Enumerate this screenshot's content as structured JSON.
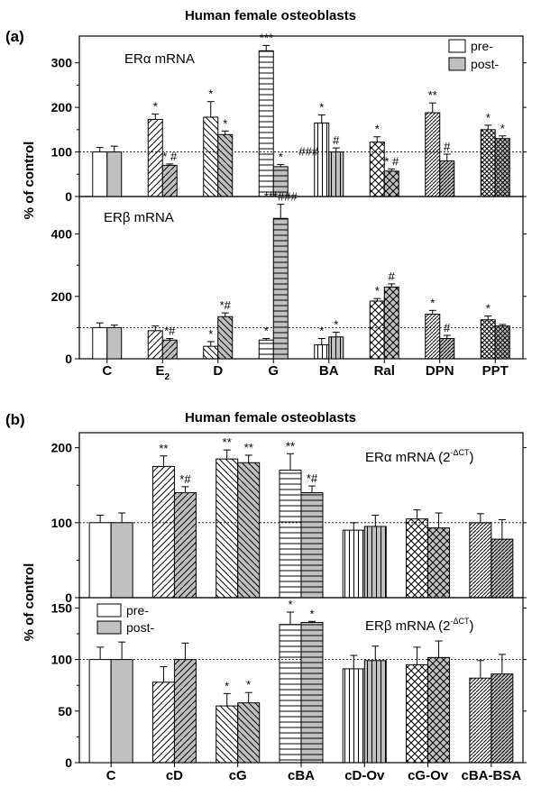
{
  "figure": {
    "panels": [
      {
        "letter": "(a)",
        "title": "Human female osteoblasts"
      },
      {
        "letter": "(b)",
        "title": "Human female osteoblasts"
      }
    ],
    "ylabel": "% of control",
    "legend": {
      "pre": "pre-",
      "post": "post-"
    }
  },
  "chart_data": [
    {
      "type": "bar",
      "panel": "(a)",
      "subplot": "upper",
      "label": "ERα mRNA",
      "categories": [
        "C",
        "E2",
        "D",
        "G",
        "BA",
        "Ral",
        "DPN",
        "PPT"
      ],
      "ylim": [
        0,
        360
      ],
      "yticks": [
        0,
        100,
        200,
        300
      ],
      "reference_line": 100,
      "series": [
        {
          "name": "pre-",
          "values": [
            100,
            173,
            178,
            327,
            165,
            122,
            188,
            150
          ],
          "errors": [
            10,
            12,
            35,
            12,
            18,
            12,
            22,
            10
          ],
          "annotations": [
            "",
            "*",
            "*",
            "***",
            "*",
            "*",
            "**",
            "*"
          ]
        },
        {
          "name": "post-",
          "values": [
            100,
            70,
            139,
            67,
            100,
            57,
            80,
            130
          ],
          "errors": [
            13,
            3,
            8,
            5,
            9,
            5,
            15,
            6
          ],
          "annotations": [
            "",
            "* #",
            "*",
            "*",
            "#",
            "* #",
            "#",
            "*"
          ]
        }
      ],
      "side_annotations": [
        {
          "category": "G",
          "text": "###"
        }
      ],
      "patterns": [
        "open",
        "diag-up",
        "diag-down",
        "horizontal",
        "vertical",
        "crosshatch",
        "diag-up-dense",
        "crosshatch-dense"
      ]
    },
    {
      "type": "bar",
      "panel": "(a)",
      "subplot": "lower",
      "label": "ERβ mRNA",
      "categories": [
        "C",
        "E2",
        "D",
        "G",
        "BA",
        "Ral",
        "DPN",
        "PPT"
      ],
      "ylim": [
        0,
        520
      ],
      "yticks": [
        0,
        200,
        400
      ],
      "reference_line": 100,
      "series": [
        {
          "name": "pre-",
          "values": [
            100,
            90,
            40,
            60,
            45,
            185,
            143,
            125
          ],
          "errors": [
            15,
            15,
            15,
            5,
            20,
            8,
            12,
            12
          ],
          "annotations": [
            "",
            "",
            "*",
            "*",
            "*",
            "*",
            "*",
            "*"
          ]
        },
        {
          "name": "post-",
          "values": [
            100,
            60,
            135,
            450,
            70,
            230,
            65,
            105
          ],
          "errors": [
            8,
            5,
            12,
            45,
            15,
            10,
            10,
            5
          ],
          "annotations": [
            "",
            "*#",
            "*#",
            "***###",
            "*",
            "#",
            "#",
            ""
          ]
        }
      ]
    },
    {
      "type": "bar",
      "panel": "(b)",
      "subplot": "upper",
      "label": "ERα mRNA (2",
      "label_sup": "-ΔCT",
      "label_end": ")",
      "categories": [
        "C",
        "cD",
        "cG",
        "cBA",
        "cD-Ov",
        "cG-Ov",
        "cBA-BSA"
      ],
      "ylim": [
        0,
        220
      ],
      "yticks": [
        0,
        100,
        200
      ],
      "reference_line": 100,
      "series": [
        {
          "name": "pre-",
          "values": [
            100,
            175,
            185,
            170,
            90,
            105,
            100
          ],
          "errors": [
            10,
            14,
            12,
            22,
            10,
            12,
            12
          ],
          "annotations": [
            "",
            "**",
            "**",
            "**",
            "",
            "",
            ""
          ]
        },
        {
          "name": "post-",
          "values": [
            100,
            140,
            180,
            140,
            95,
            93,
            78
          ],
          "errors": [
            13,
            8,
            10,
            9,
            15,
            20,
            26
          ],
          "annotations": [
            "",
            "*#",
            "**",
            "*#",
            "",
            "",
            ""
          ]
        }
      ]
    },
    {
      "type": "bar",
      "panel": "(b)",
      "subplot": "lower",
      "label": "ERβ mRNA (2",
      "label_sup": "-ΔCT",
      "label_end": ")",
      "categories": [
        "C",
        "cD",
        "cG",
        "cBA",
        "cD-Ov",
        "cG-Ov",
        "cBA-BSA"
      ],
      "ylim": [
        0,
        160
      ],
      "yticks": [
        0,
        50,
        100,
        150
      ],
      "reference_line": 100,
      "series": [
        {
          "name": "pre-",
          "values": [
            100,
            78,
            55,
            134,
            91,
            95,
            82
          ],
          "errors": [
            12,
            15,
            12,
            12,
            13,
            17,
            17
          ],
          "annotations": [
            "",
            "",
            "*",
            "*",
            "",
            "",
            ""
          ]
        },
        {
          "name": "post-",
          "values": [
            100,
            100,
            58,
            136,
            99,
            102,
            86
          ],
          "errors": [
            17,
            16,
            10,
            1,
            14,
            16,
            19
          ],
          "annotations": [
            "",
            "",
            "*",
            "*",
            "",
            "",
            ""
          ]
        }
      ],
      "patterns": [
        "open",
        "diag-up",
        "diag-down",
        "horizontal",
        "vertical",
        "crosshatch",
        "diag-up-dense"
      ]
    }
  ]
}
